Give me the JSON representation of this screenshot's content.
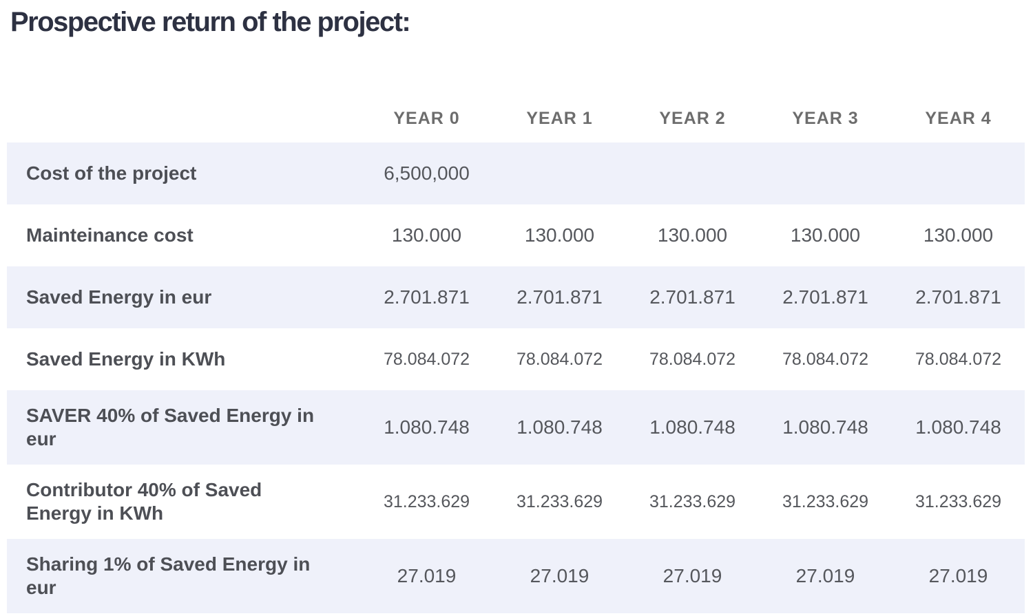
{
  "page": {
    "title": "Prospective return of the project:"
  },
  "table": {
    "columns": [
      "YEAR 0",
      "YEAR 1",
      "YEAR 2",
      "YEAR 3",
      "YEAR 4"
    ],
    "rows": [
      {
        "label": "Cost of the project",
        "values": [
          "6,500,000",
          "",
          "",
          "",
          ""
        ]
      },
      {
        "label": "Mainteinance cost",
        "values": [
          "130.000",
          "130.000",
          "130.000",
          "130.000",
          "130.000"
        ]
      },
      {
        "label": "Saved Energy in eur",
        "values": [
          "2.701.871",
          "2.701.871",
          "2.701.871",
          "2.701.871",
          "2.701.871"
        ]
      },
      {
        "label": "Saved Energy in KWh",
        "values": [
          "78.084.072",
          "78.084.072",
          "78.084.072",
          "78.084.072",
          "78.084.072"
        ]
      },
      {
        "label": "SAVER 40% of Saved Energy in\neur",
        "values": [
          "1.080.748",
          "1.080.748",
          "1.080.748",
          "1.080.748",
          "1.080.748"
        ]
      },
      {
        "label": "Contributor 40% of Saved\nEnergy in KWh",
        "values": [
          "31.233.629",
          "31.233.629",
          "31.233.629",
          "31.233.629",
          "31.233.629"
        ]
      },
      {
        "label": "Sharing 1% of Saved Energy in\neur",
        "values": [
          "27.019",
          "27.019",
          "27.019",
          "27.019",
          "27.019"
        ]
      }
    ],
    "colors": {
      "shaded_row_bg": "#eff1fa",
      "title_text": "#2d3142",
      "header_text": "#6d6d6d",
      "label_text": "#4d4f55",
      "value_text": "#55575c"
    }
  }
}
